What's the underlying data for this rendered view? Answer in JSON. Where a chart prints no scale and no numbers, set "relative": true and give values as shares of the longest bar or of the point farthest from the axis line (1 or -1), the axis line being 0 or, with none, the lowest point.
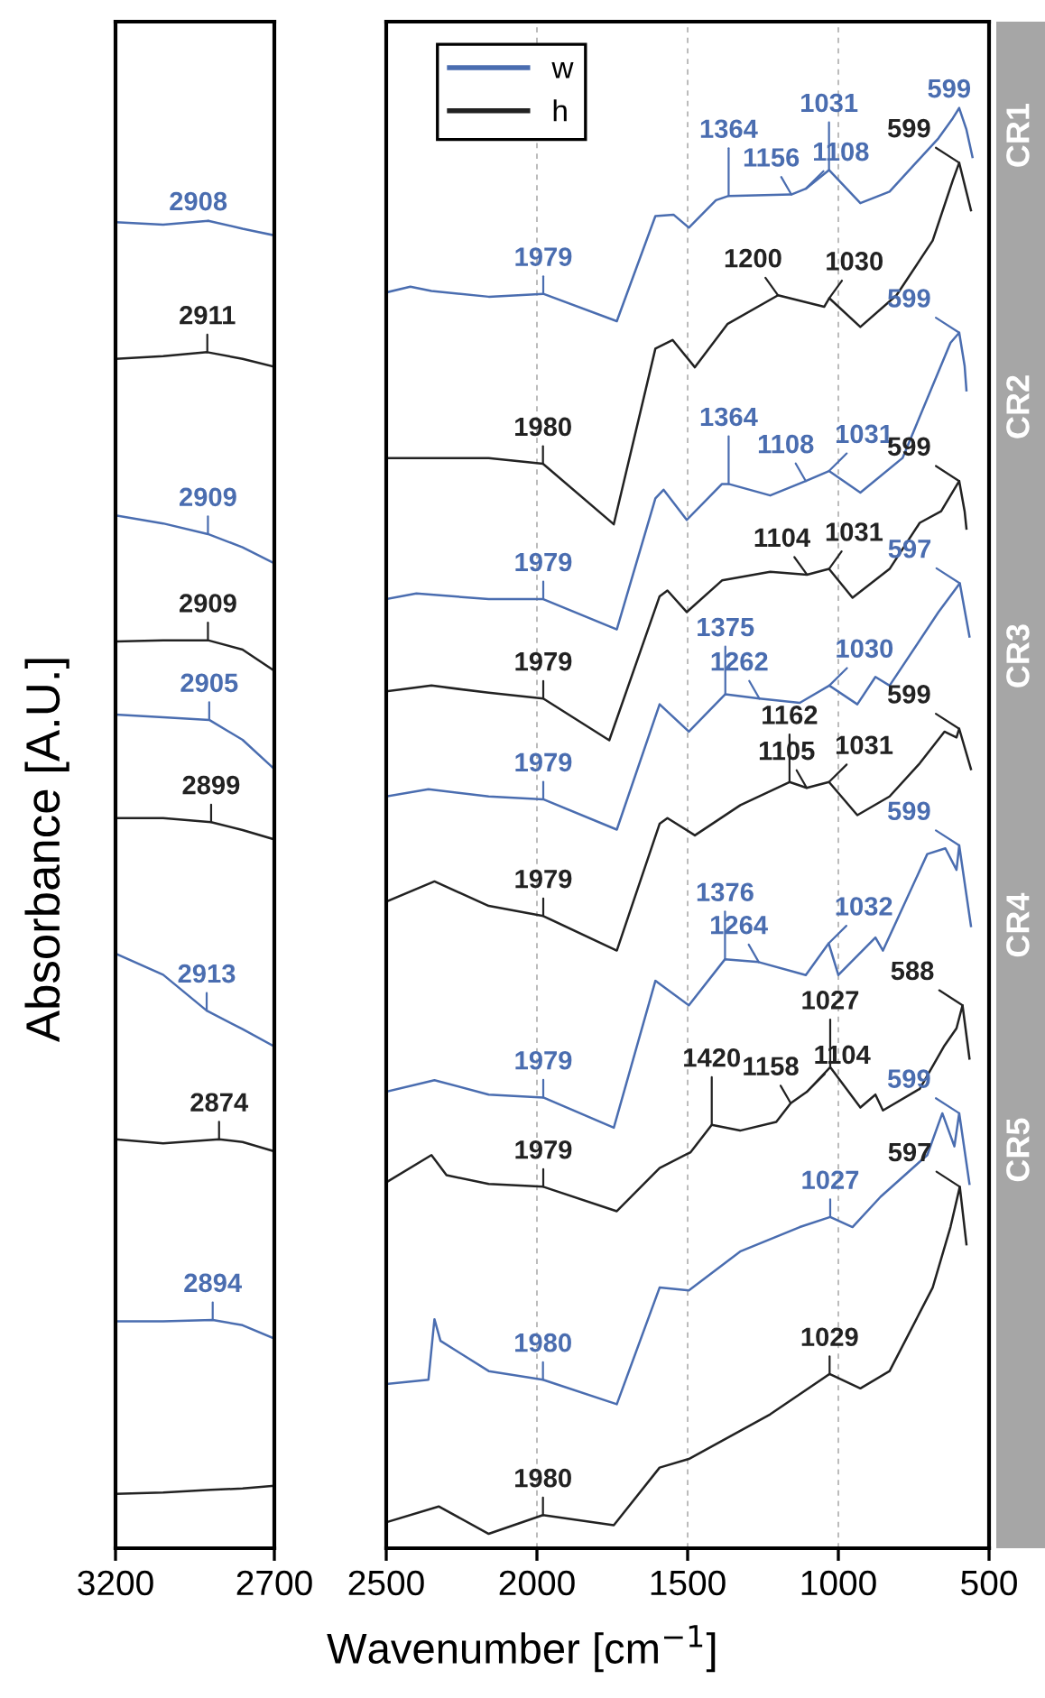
{
  "chart_data": [
    {
      "type": "line",
      "ylabel": "Absorbance [A.U.]",
      "relative": true,
      "xlim": [
        3200,
        2700
      ],
      "xticks": [
        3200,
        2700
      ],
      "tick_labels": "x",
      "grid": "x",
      "series": [
        {
          "color": "#4a6db0",
          "x": [
            3200,
            3050,
            2908,
            2800,
            2700
          ],
          "values": [
            0.999,
            0.997,
            1.0,
            0.994,
            0.989
          ]
        },
        {
          "color": "#222222",
          "x": [
            3200,
            3050,
            2911,
            2800,
            2700
          ],
          "values": [
            0.896,
            0.898,
            0.901,
            0.896,
            0.89
          ]
        },
        {
          "color": "#4a6db0",
          "x": [
            3200,
            3050,
            2909,
            2800,
            2700
          ],
          "values": [
            0.778,
            0.772,
            0.764,
            0.754,
            0.742
          ]
        },
        {
          "color": "#222222",
          "x": [
            3200,
            3050,
            2909,
            2800,
            2700
          ],
          "values": [
            0.683,
            0.684,
            0.684,
            0.677,
            0.661
          ]
        },
        {
          "color": "#4a6db0",
          "x": [
            3200,
            3050,
            2905,
            2800,
            2700
          ],
          "values": [
            0.628,
            0.626,
            0.624,
            0.609,
            0.587
          ]
        },
        {
          "color": "#222222",
          "x": [
            3200,
            3050,
            2899,
            2800,
            2700
          ],
          "values": [
            0.55,
            0.55,
            0.547,
            0.541,
            0.534
          ]
        },
        {
          "color": "#4a6db0",
          "x": [
            3200,
            3050,
            2913,
            2800,
            2700
          ],
          "values": [
            0.448,
            0.432,
            0.405,
            0.391,
            0.378
          ]
        },
        {
          "color": "#222222",
          "x": [
            3200,
            3050,
            2874,
            2800,
            2700
          ],
          "values": [
            0.308,
            0.305,
            0.308,
            0.306,
            0.299
          ]
        },
        {
          "color": "#4a6db0",
          "x": [
            3200,
            3050,
            2894,
            2800,
            2700
          ],
          "values": [
            0.171,
            0.171,
            0.172,
            0.168,
            0.158
          ]
        },
        {
          "color": "#222222",
          "x": [
            3200,
            3050,
            2900,
            2800,
            2700
          ],
          "values": [
            0.041,
            0.042,
            0.044,
            0.045,
            0.047
          ]
        }
      ],
      "annotations": [
        {
          "text": "2908",
          "x": 2908,
          "y": 1.0
        },
        {
          "text": "2911",
          "x": 2911,
          "y": 0.901
        },
        {
          "text": "2909",
          "x": 2909,
          "y": 0.764
        },
        {
          "text": "2909",
          "x": 2909,
          "y": 0.684
        },
        {
          "text": "2905",
          "x": 2905,
          "y": 0.624
        },
        {
          "text": "2899",
          "x": 2899,
          "y": 0.547
        },
        {
          "text": "2913",
          "x": 2913,
          "y": 0.405
        },
        {
          "text": "2874",
          "x": 2874,
          "y": 0.308
        },
        {
          "text": "2894",
          "x": 2894,
          "y": 0.172
        }
      ]
    },
    {
      "type": "line",
      "xlabel": "Wavenumber [cm$^{−1}$]",
      "relative": true,
      "xlim": [
        2500,
        500
      ],
      "xticks": [
        2500,
        2000,
        1500,
        1000,
        500
      ],
      "tick_labels": "x",
      "grid": "x",
      "legend": "top left",
      "series": [
        {
          "name": "w",
          "color": "#4a6db0",
          "x": [
            2500,
            2420,
            2350,
            2160,
            1979,
            1735,
            1607,
            1547,
            1496,
            1406,
            1364,
            1156,
            1108,
            1031,
            927,
            830,
            668,
            620,
            599,
            575,
            555
          ],
          "values": [
            0.872,
            0.876,
            0.873,
            0.869,
            0.871,
            0.852,
            0.925,
            0.926,
            0.917,
            0.936,
            0.939,
            0.94,
            0.944,
            0.957,
            0.934,
            0.942,
            0.979,
            0.993,
            1.0,
            0.985,
            0.966
          ]
        },
        {
          "name": "h",
          "color": "#222222",
          "x": [
            2500,
            2160,
            1980,
            1745,
            1607,
            1550,
            1476,
            1368,
            1200,
            1047,
            1030,
            927,
            807,
            687,
            620,
            599,
            560
          ],
          "values": [
            0.757,
            0.757,
            0.753,
            0.711,
            0.833,
            0.839,
            0.82,
            0.85,
            0.87,
            0.862,
            0.868,
            0.848,
            0.87,
            0.908,
            0.95,
            0.962,
            0.929
          ]
        },
        {
          "color": "#4a6db0",
          "x": [
            2500,
            2400,
            2160,
            1979,
            1735,
            1607,
            1580,
            1503,
            1386,
            1364,
            1226,
            1108,
            1031,
            927,
            787,
            628,
            599,
            581,
            575
          ],
          "values": [
            0.659,
            0.663,
            0.659,
            0.659,
            0.638,
            0.729,
            0.735,
            0.714,
            0.739,
            0.739,
            0.731,
            0.741,
            0.748,
            0.733,
            0.757,
            0.837,
            0.844,
            0.821,
            0.804
          ]
        },
        {
          "color": "#222222",
          "x": [
            2500,
            2350,
            2160,
            1979,
            1760,
            1593,
            1567,
            1503,
            1386,
            1226,
            1104,
            1031,
            953,
            830,
            730,
            659,
            599,
            581,
            575
          ],
          "values": [
            0.595,
            0.599,
            0.594,
            0.59,
            0.561,
            0.661,
            0.665,
            0.65,
            0.672,
            0.678,
            0.676,
            0.68,
            0.66,
            0.68,
            0.712,
            0.72,
            0.741,
            0.72,
            0.708
          ]
        },
        {
          "color": "#4a6db0",
          "x": [
            2500,
            2360,
            2160,
            1979,
            1735,
            1593,
            1496,
            1375,
            1262,
            1128,
            1030,
            937,
            877,
            830,
            668,
            597,
            565
          ],
          "values": [
            0.522,
            0.527,
            0.522,
            0.52,
            0.499,
            0.586,
            0.567,
            0.593,
            0.59,
            0.587,
            0.599,
            0.586,
            0.605,
            0.599,
            0.65,
            0.67,
            0.633
          ]
        },
        {
          "color": "#222222",
          "x": [
            2500,
            2340,
            2160,
            1979,
            1735,
            1593,
            1567,
            1476,
            1325,
            1162,
            1105,
            1031,
            937,
            830,
            730,
            648,
            608,
            599,
            560
          ],
          "values": [
            0.449,
            0.463,
            0.446,
            0.439,
            0.415,
            0.503,
            0.507,
            0.495,
            0.516,
            0.532,
            0.528,
            0.532,
            0.509,
            0.522,
            0.545,
            0.567,
            0.563,
            0.569,
            0.541
          ]
        },
        {
          "color": "#4a6db0",
          "x": [
            2500,
            2340,
            2160,
            1979,
            1745,
            1607,
            1496,
            1376,
            1264,
            1108,
            1032,
            1000,
            877,
            852,
            705,
            645,
            608,
            599,
            560
          ],
          "values": [
            0.317,
            0.325,
            0.315,
            0.313,
            0.292,
            0.394,
            0.377,
            0.409,
            0.407,
            0.398,
            0.42,
            0.398,
            0.424,
            0.415,
            0.482,
            0.486,
            0.471,
            0.488,
            0.432
          ]
        },
        {
          "color": "#222222",
          "x": [
            2500,
            2350,
            2300,
            2160,
            1979,
            1735,
            1593,
            1490,
            1420,
            1326,
            1206,
            1158,
            1104,
            1027,
            927,
            877,
            852,
            730,
            648,
            608,
            588,
            565
          ],
          "values": [
            0.254,
            0.273,
            0.259,
            0.253,
            0.251,
            0.234,
            0.264,
            0.275,
            0.294,
            0.29,
            0.296,
            0.309,
            0.317,
            0.334,
            0.306,
            0.315,
            0.304,
            0.319,
            0.349,
            0.361,
            0.377,
            0.34
          ]
        },
        {
          "color": "#4a6db0",
          "x": [
            2500,
            2360,
            2340,
            2320,
            2160,
            1980,
            1735,
            1593,
            1496,
            1326,
            1128,
            1027,
            953,
            860,
            705,
            655,
            615,
            599,
            565
          ],
          "values": [
            0.114,
            0.117,
            0.159,
            0.144,
            0.123,
            0.117,
            0.1,
            0.181,
            0.179,
            0.206,
            0.223,
            0.23,
            0.223,
            0.244,
            0.273,
            0.302,
            0.279,
            0.302,
            0.253
          ]
        },
        {
          "color": "#222222",
          "x": [
            2500,
            2326,
            2160,
            1980,
            1745,
            1593,
            1496,
            1226,
            1029,
            927,
            830,
            687,
            628,
            597,
            575
          ],
          "values": [
            0.018,
            0.029,
            0.01,
            0.023,
            0.016,
            0.056,
            0.062,
            0.093,
            0.121,
            0.111,
            0.123,
            0.181,
            0.223,
            0.251,
            0.211
          ]
        }
      ],
      "annotations": [
        "CR1",
        "CR2",
        "CR3",
        "CR4",
        "CR5",
        {
          "text": "1979",
          "x": 1979,
          "y": 0.871
        },
        {
          "text": "1364",
          "x": 1364,
          "y": 0.939
        },
        {
          "text": "1156",
          "x": 1156,
          "y": 0.94
        },
        {
          "text": "1108",
          "x": 1108,
          "y": 0.944
        },
        {
          "text": "1031",
          "x": 1031,
          "y": 0.957
        },
        {
          "text": "599",
          "x": 599,
          "y": 1.0
        },
        {
          "text": "1980",
          "x": 1980,
          "y": 0.753
        },
        {
          "text": "1200",
          "x": 1200,
          "y": 0.87
        },
        {
          "text": "1030",
          "x": 1030,
          "y": 0.868
        },
        {
          "text": "599",
          "x": 599,
          "y": 0.962
        },
        {
          "text": "1979",
          "x": 1979,
          "y": 0.659
        },
        {
          "text": "1364",
          "x": 1364,
          "y": 0.739
        },
        {
          "text": "1108",
          "x": 1108,
          "y": 0.741
        },
        {
          "text": "1031",
          "x": 1031,
          "y": 0.748
        },
        {
          "text": "599",
          "x": 599,
          "y": 0.844
        },
        {
          "text": "1979",
          "x": 1979,
          "y": 0.59
        },
        {
          "text": "1104",
          "x": 1104,
          "y": 0.676
        },
        {
          "text": "1031",
          "x": 1031,
          "y": 0.68
        },
        {
          "text": "599",
          "x": 599,
          "y": 0.741
        },
        {
          "text": "1979",
          "x": 1979,
          "y": 0.52
        },
        {
          "text": "1375",
          "x": 1375,
          "y": 0.593
        },
        {
          "text": "1262",
          "x": 1262,
          "y": 0.59
        },
        {
          "text": "1030",
          "x": 1030,
          "y": 0.599
        },
        {
          "text": "597",
          "x": 597,
          "y": 0.67
        },
        {
          "text": "1979",
          "x": 1979,
          "y": 0.439
        },
        {
          "text": "1162",
          "x": 1162,
          "y": 0.532
        },
        {
          "text": "1105",
          "x": 1105,
          "y": 0.528
        },
        {
          "text": "1031",
          "x": 1031,
          "y": 0.532
        },
        {
          "text": "599",
          "x": 599,
          "y": 0.569
        },
        {
          "text": "1979",
          "x": 1979,
          "y": 0.313
        },
        {
          "text": "1376",
          "x": 1376,
          "y": 0.409
        },
        {
          "text": "1264",
          "x": 1264,
          "y": 0.407
        },
        {
          "text": "1032",
          "x": 1032,
          "y": 0.42
        },
        {
          "text": "599",
          "x": 599,
          "y": 0.488
        },
        {
          "text": "1979",
          "x": 1979,
          "y": 0.251
        },
        {
          "text": "1420",
          "x": 1420,
          "y": 0.294
        },
        {
          "text": "1158",
          "x": 1158,
          "y": 0.309
        },
        {
          "text": "1104",
          "x": 1104,
          "y": 0.317
        },
        {
          "text": "1027",
          "x": 1027,
          "y": 0.334
        },
        {
          "text": "588",
          "x": 588,
          "y": 0.377
        },
        {
          "text": "1980",
          "x": 1980,
          "y": 0.117
        },
        {
          "text": "1027",
          "x": 1027,
          "y": 0.23
        },
        {
          "text": "599",
          "x": 599,
          "y": 0.302
        },
        {
          "text": "1980",
          "x": 1980,
          "y": 0.023
        },
        {
          "text": "1029",
          "x": 1029,
          "y": 0.121
        },
        {
          "text": "597",
          "x": 597,
          "y": 0.251
        }
      ]
    }
  ]
}
